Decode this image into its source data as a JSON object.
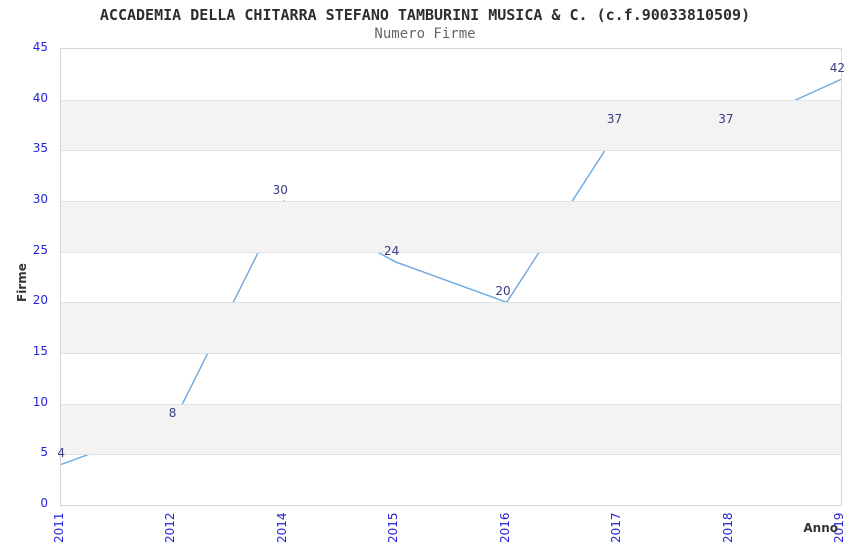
{
  "chart_data": {
    "type": "line",
    "title": "ACCADEMIA DELLA CHITARRA STEFANO TAMBURINI MUSICA & C. (c.f.90033810509)",
    "subtitle": "Numero Firme",
    "xlabel": "Anno",
    "ylabel": "Firme",
    "categories": [
      "2011",
      "2012",
      "2014",
      "2015",
      "2016",
      "2017",
      "2018",
      "2019"
    ],
    "values": [
      4,
      8,
      30,
      24,
      20,
      37,
      37,
      42
    ],
    "ylim": [
      0,
      45
    ],
    "ytick_step": 5,
    "grid": "horizontal-lines-with-alternating-bands",
    "legend": "none",
    "colors": {
      "line": "#6ca9e0",
      "tick_label": "#2323d7",
      "data_label": "#3a3a85",
      "band": "#f3f3f3",
      "gridline": "#e2e2e2",
      "plot_border": "#d6d6d6",
      "title": "#2e2e2e",
      "subtitle": "#666666",
      "axis_title": "#333333",
      "background": "#ffffff"
    }
  }
}
